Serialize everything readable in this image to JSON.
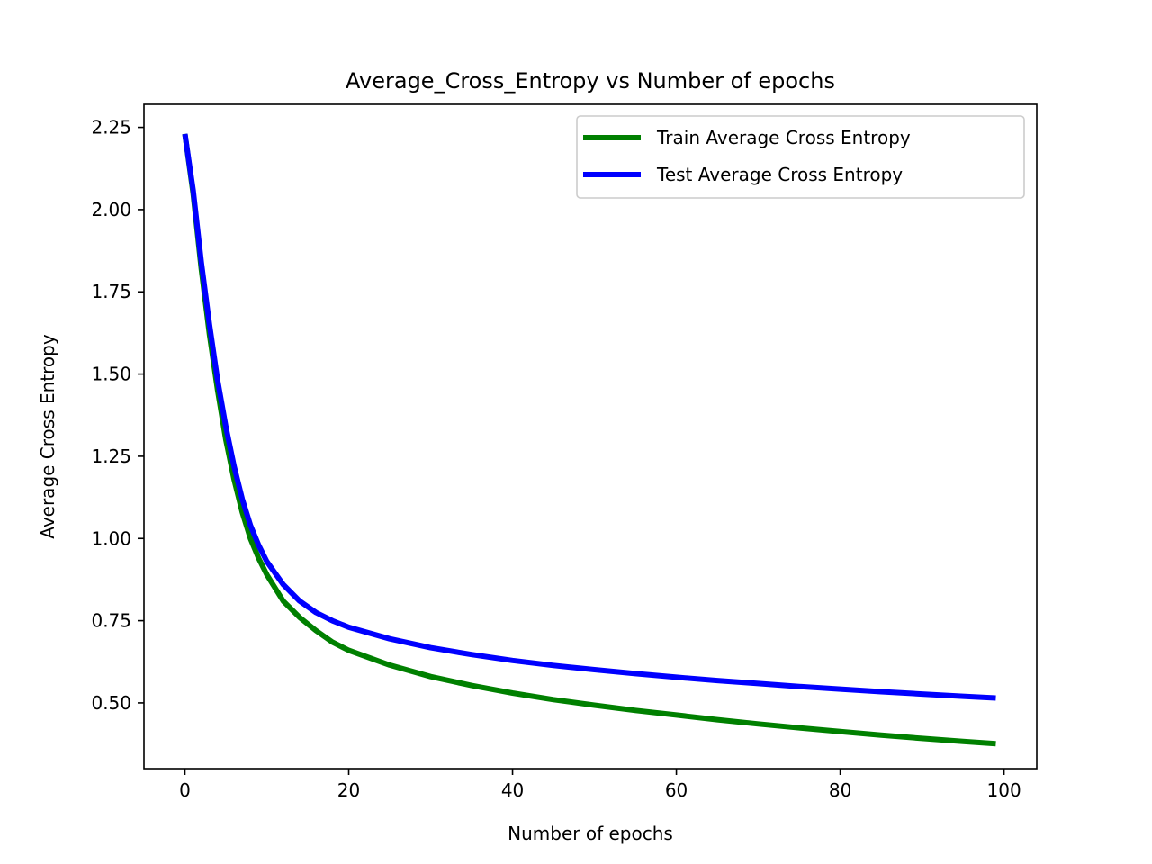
{
  "chart_data": {
    "type": "line",
    "title": "Average_Cross_Entropy vs Number of epochs",
    "xlabel": "Number of epochs",
    "ylabel": "Average Cross Entropy",
    "xlim": [
      -5,
      104
    ],
    "ylim": [
      0.3,
      2.32
    ],
    "xticks": [
      0,
      20,
      40,
      60,
      80,
      100
    ],
    "yticks": [
      0.5,
      0.75,
      1.0,
      1.25,
      1.5,
      1.75,
      2.0,
      2.25
    ],
    "ytick_labels": [
      "0.50",
      "0.75",
      "1.00",
      "1.25",
      "1.50",
      "1.75",
      "2.00",
      "2.25"
    ],
    "grid": false,
    "legend_position": "top-right",
    "series": [
      {
        "name": "Train Average Cross Entropy",
        "color": "#008000",
        "x": [
          0,
          1,
          2,
          3,
          4,
          5,
          6,
          7,
          8,
          9,
          10,
          12,
          14,
          16,
          18,
          20,
          25,
          30,
          35,
          40,
          45,
          50,
          55,
          60,
          65,
          70,
          75,
          80,
          85,
          90,
          95,
          99
        ],
        "y": [
          2.23,
          2.05,
          1.82,
          1.62,
          1.45,
          1.3,
          1.18,
          1.08,
          1.0,
          0.94,
          0.89,
          0.81,
          0.76,
          0.72,
          0.685,
          0.66,
          0.615,
          0.58,
          0.553,
          0.53,
          0.51,
          0.493,
          0.477,
          0.463,
          0.449,
          0.436,
          0.424,
          0.413,
          0.402,
          0.392,
          0.383,
          0.376
        ]
      },
      {
        "name": "Test Average Cross Entropy",
        "color": "#0000ff",
        "x": [
          0,
          1,
          2,
          3,
          4,
          5,
          6,
          7,
          8,
          9,
          10,
          12,
          14,
          16,
          18,
          20,
          25,
          30,
          35,
          40,
          45,
          50,
          55,
          60,
          65,
          70,
          75,
          80,
          85,
          90,
          95,
          99
        ],
        "y": [
          2.23,
          2.06,
          1.84,
          1.65,
          1.48,
          1.34,
          1.22,
          1.12,
          1.04,
          0.98,
          0.93,
          0.86,
          0.81,
          0.775,
          0.75,
          0.73,
          0.695,
          0.668,
          0.647,
          0.629,
          0.614,
          0.601,
          0.589,
          0.578,
          0.568,
          0.559,
          0.55,
          0.542,
          0.534,
          0.527,
          0.52,
          0.515
        ]
      }
    ]
  }
}
